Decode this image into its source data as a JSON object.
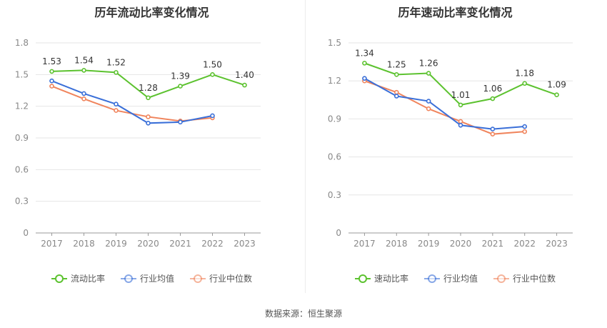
{
  "footer_text": "数据来源：恒生聚源",
  "chart_data": [
    {
      "type": "line",
      "title": "历年流动比率变化情况",
      "categories": [
        "2017",
        "2018",
        "2019",
        "2020",
        "2021",
        "2022",
        "2023"
      ],
      "ylim": [
        0,
        1.8
      ],
      "yticks": [
        "0",
        "0.3",
        "0.6",
        "0.9",
        "1.2",
        "1.5",
        "1.8"
      ],
      "grid": true,
      "legend_position": "bottom",
      "series": [
        {
          "name": "流动比率",
          "color": "#5cc22f",
          "show_labels": true,
          "values": [
            1.53,
            1.54,
            1.52,
            1.28,
            1.39,
            1.5,
            1.4
          ],
          "labels": [
            "1.53",
            "1.54",
            "1.52",
            "1.28",
            "1.39",
            "1.50",
            "1.40"
          ]
        },
        {
          "name": "行业均值",
          "color": "#3a6fd8",
          "show_labels": false,
          "values": [
            1.44,
            1.32,
            1.22,
            1.04,
            1.05,
            1.11,
            null
          ]
        },
        {
          "name": "行业中位数",
          "color": "#f0845c",
          "show_labels": false,
          "values": [
            1.39,
            1.27,
            1.16,
            1.1,
            1.06,
            1.09,
            null
          ]
        }
      ]
    },
    {
      "type": "line",
      "title": "历年速动比率变化情况",
      "categories": [
        "2017",
        "2018",
        "2019",
        "2020",
        "2021",
        "2022",
        "2023"
      ],
      "ylim": [
        0,
        1.5
      ],
      "yticks": [
        "0",
        "0.3",
        "0.6",
        "0.9",
        "1.2",
        "1.5"
      ],
      "grid": true,
      "legend_position": "bottom",
      "series": [
        {
          "name": "速动比率",
          "color": "#5cc22f",
          "show_labels": true,
          "values": [
            1.34,
            1.25,
            1.26,
            1.01,
            1.06,
            1.18,
            1.09
          ],
          "labels": [
            "1.34",
            "1.25",
            "1.26",
            "1.01",
            "1.06",
            "1.18",
            "1.09"
          ]
        },
        {
          "name": "行业均值",
          "color": "#3a6fd8",
          "show_labels": false,
          "values": [
            1.22,
            1.08,
            1.04,
            0.85,
            0.82,
            0.84,
            null
          ]
        },
        {
          "name": "行业中位数",
          "color": "#f0845c",
          "show_labels": false,
          "values": [
            1.2,
            1.11,
            0.98,
            0.88,
            0.78,
            0.8,
            null
          ]
        }
      ]
    }
  ]
}
